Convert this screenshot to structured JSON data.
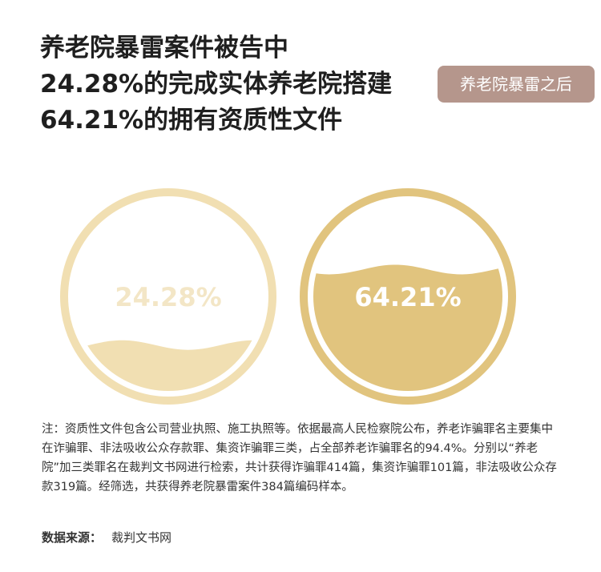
{
  "title": {
    "line1": "养老院暴雷案件被告中",
    "line2": "24.28%的完成实体养老院搭建",
    "line3": "64.21%的拥有资质性文件"
  },
  "tag_label": "养老院暴雷之后",
  "chart_data": {
    "type": "liquid-gauge",
    "items": [
      {
        "label": "24.28%",
        "value": 24.28,
        "color": "#f1dfb2",
        "label_color": "#f3e6c6"
      },
      {
        "label": "64.21%",
        "value": 64.21,
        "color": "#e1c47e",
        "label_color": "#ffffff"
      }
    ]
  },
  "note": "注：资质性文件包含公司营业执照、施工执照等。依据最高人民检察院公布，养老诈骗罪名主要集中在诈骗罪、非法吸收公众存款罪、集资诈骗罪三类，占全部养老诈骗罪名的94.4%。分别以“养老院”加三类罪名在裁判文书网进行检索，共计获得诈骗罪414篇，集资诈骗罪101篇，非法吸收公众存款319篇。经筛选，共获得养老院暴雷案件384篇编码样本。",
  "source": {
    "label": "数据来源：",
    "value": "裁判文书网"
  }
}
